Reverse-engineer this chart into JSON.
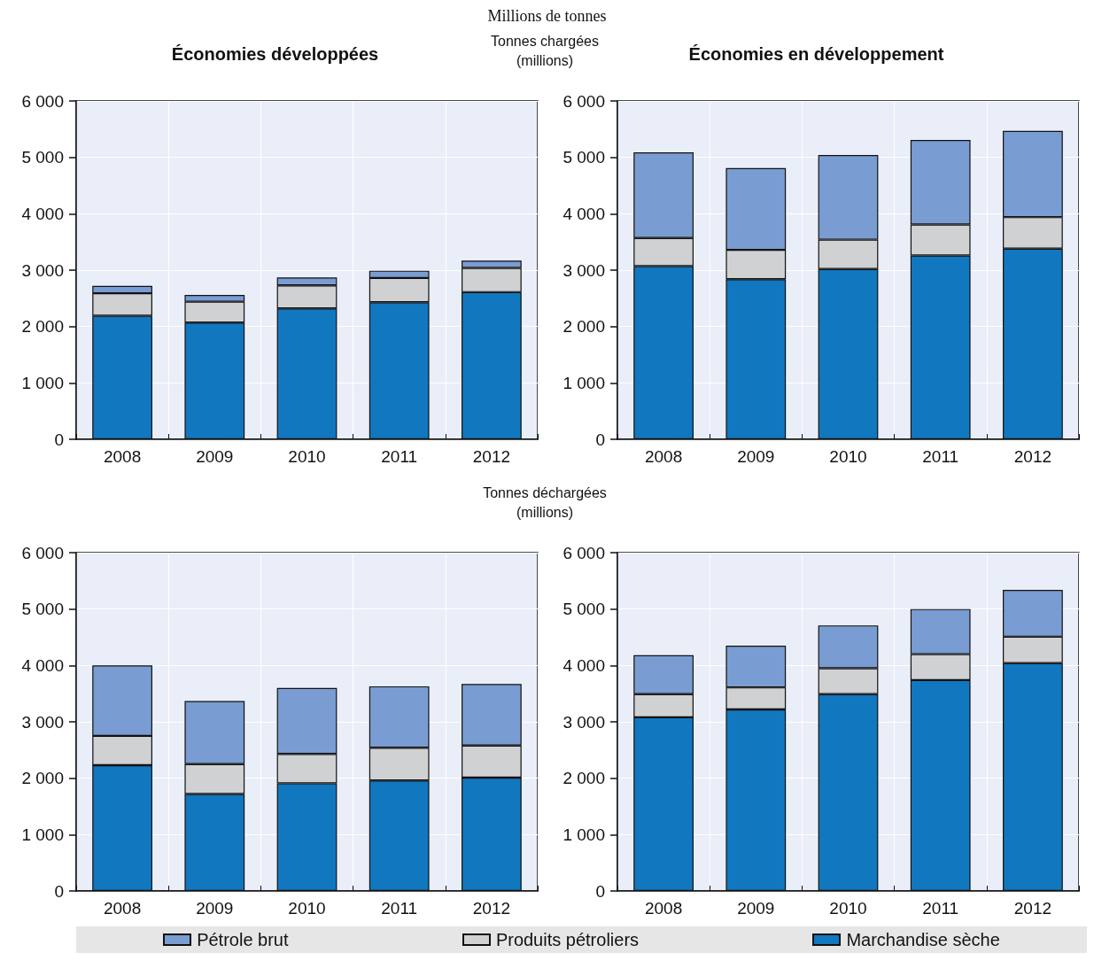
{
  "chart_data": [
    {
      "type": "bar",
      "title": "Économies développées",
      "subtitle": "Millions de tonnes",
      "annotations": [
        "Tonnes chargées (millions)"
      ],
      "categories": [
        "2008",
        "2009",
        "2010",
        "2011",
        "2012"
      ],
      "stacked": true,
      "grid": true,
      "legend": "bottom",
      "ylim": [
        0,
        6000
      ],
      "yticks": [
        {
          "value": 0,
          "label": "0"
        },
        {
          "value": 1000,
          "label": "1 000"
        },
        {
          "value": 2000,
          "label": "2 000"
        },
        {
          "value": 3000,
          "label": "3 000"
        },
        {
          "value": 4000,
          "label": "4 000"
        },
        {
          "value": 5000,
          "label": "5 000"
        },
        {
          "value": 6000,
          "label": "6 000"
        }
      ],
      "series": [
        {
          "name": "Marchandise sèche",
          "color": "#1177bf",
          "values": [
            2190,
            2070,
            2320,
            2430,
            2610
          ]
        },
        {
          "name": "Produits pétroliers",
          "color": "#d0d1d3",
          "values": [
            400,
            370,
            410,
            430,
            430
          ]
        },
        {
          "name": "Pétrole brut",
          "color": "#799cd2",
          "values": [
            130,
            120,
            140,
            130,
            130
          ]
        }
      ]
    },
    {
      "type": "bar",
      "title": "Économies en développement",
      "categories": [
        "2008",
        "2009",
        "2010",
        "2011",
        "2012"
      ],
      "stacked": true,
      "grid": true,
      "ylim": [
        0,
        6000
      ],
      "yticks": [
        {
          "value": 0,
          "label": "0"
        },
        {
          "value": 1000,
          "label": "1 000"
        },
        {
          "value": 2000,
          "label": "2 000"
        },
        {
          "value": 3000,
          "label": "3 000"
        },
        {
          "value": 4000,
          "label": "4 000"
        },
        {
          "value": 5000,
          "label": "5 000"
        },
        {
          "value": 6000,
          "label": "6 000"
        }
      ],
      "series": [
        {
          "color": "#1177bf",
          "values": [
            3070,
            2840,
            3020,
            3260,
            3380
          ]
        },
        {
          "color": "#d0d1d3",
          "values": [
            500,
            520,
            520,
            550,
            560
          ]
        },
        {
          "color": "#799cd2",
          "values": [
            1520,
            1450,
            1500,
            1500,
            1530
          ]
        }
      ]
    },
    {
      "type": "bar",
      "annotations": [
        "Tonnes déchargées (millions)"
      ],
      "categories": [
        "2008",
        "2009",
        "2010",
        "2011",
        "2012"
      ],
      "stacked": true,
      "grid": true,
      "ylim": [
        0,
        6000
      ],
      "yticks": [
        {
          "value": 0,
          "label": "0"
        },
        {
          "value": 1000,
          "label": "1 000"
        },
        {
          "value": 2000,
          "label": "2 000"
        },
        {
          "value": 3000,
          "label": "3 000"
        },
        {
          "value": 4000,
          "label": "4 000"
        },
        {
          "value": 5000,
          "label": "5 000"
        },
        {
          "value": 6000,
          "label": "6 000"
        }
      ],
      "series": [
        {
          "color": "#1177bf",
          "values": [
            2230,
            1720,
            1910,
            1960,
            2010
          ]
        },
        {
          "color": "#d0d1d3",
          "values": [
            520,
            530,
            520,
            580,
            570
          ]
        },
        {
          "color": "#799cd2",
          "values": [
            1250,
            1120,
            1170,
            1090,
            1090
          ]
        }
      ]
    },
    {
      "type": "bar",
      "categories": [
        "2008",
        "2009",
        "2010",
        "2011",
        "2012"
      ],
      "stacked": true,
      "grid": true,
      "ylim": [
        0,
        6000
      ],
      "yticks": [
        {
          "value": 0,
          "label": "0"
        },
        {
          "value": 1000,
          "label": "1 000"
        },
        {
          "value": 2000,
          "label": "2 000"
        },
        {
          "value": 3000,
          "label": "3 000"
        },
        {
          "value": 4000,
          "label": "4 000"
        },
        {
          "value": 5000,
          "label": "5 000"
        },
        {
          "value": 6000,
          "label": "6 000"
        }
      ],
      "series": [
        {
          "color": "#1177bf",
          "values": [
            3080,
            3220,
            3490,
            3740,
            4040
          ]
        },
        {
          "color": "#d0d1d3",
          "values": [
            410,
            390,
            460,
            460,
            470
          ]
        },
        {
          "color": "#799cd2",
          "values": [
            690,
            740,
            760,
            800,
            830
          ]
        }
      ]
    }
  ]
}
